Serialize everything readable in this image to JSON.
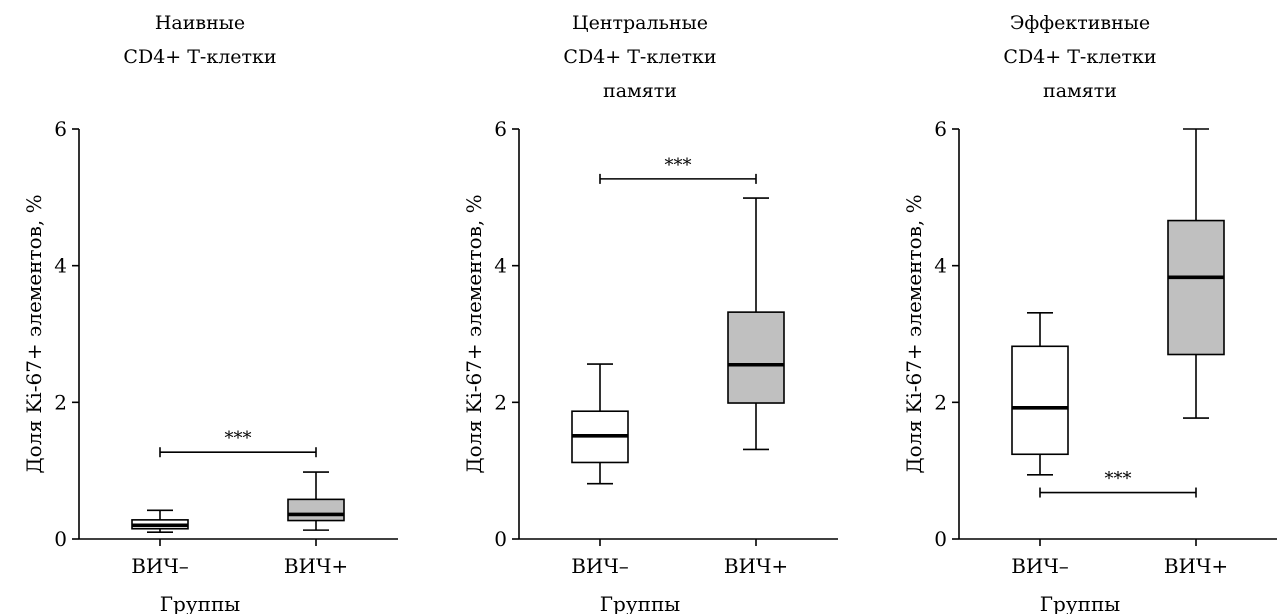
{
  "chart_data": [
    {
      "type": "box",
      "title_lines": [
        "Наивные",
        "CD4+ Т-клетки"
      ],
      "xlabel": "Группы",
      "ylabel": "Доля Ki-67+ элементов, %",
      "ylim": [
        0,
        6
      ],
      "yticks": [
        0,
        2,
        4,
        6
      ],
      "categories": [
        "ВИЧ–",
        "ВИЧ+"
      ],
      "boxes": [
        {
          "group": "ВИЧ–",
          "min": 0.1,
          "q1": 0.15,
          "median": 0.2,
          "q3": 0.28,
          "max": 0.42,
          "fill": "#ffffff"
        },
        {
          "group": "ВИЧ+",
          "min": 0.13,
          "q1": 0.27,
          "median": 0.36,
          "q3": 0.58,
          "max": 0.98,
          "fill": "#c0c0c0"
        }
      ],
      "significance": {
        "label": "***",
        "y": 1.27
      }
    },
    {
      "type": "box",
      "title_lines": [
        "Центральные",
        "CD4+ Т-клетки",
        "памяти"
      ],
      "xlabel": "Группы",
      "ylabel": "Доля Ki-67+ элементов, %",
      "ylim": [
        0,
        6
      ],
      "yticks": [
        0,
        2,
        4,
        6
      ],
      "categories": [
        "ВИЧ–",
        "ВИЧ+"
      ],
      "boxes": [
        {
          "group": "ВИЧ–",
          "min": 0.81,
          "q1": 1.12,
          "median": 1.51,
          "q3": 1.87,
          "max": 2.56,
          "fill": "#ffffff"
        },
        {
          "group": "ВИЧ+",
          "min": 1.31,
          "q1": 1.99,
          "median": 2.55,
          "q3": 3.32,
          "max": 4.99,
          "fill": "#c0c0c0"
        }
      ],
      "significance": {
        "label": "***",
        "y": 5.27
      }
    },
    {
      "type": "box",
      "title_lines": [
        "Эффективные",
        "CD4+ Т-клетки",
        "памяти"
      ],
      "xlabel": "Группы",
      "ylabel": "Доля Ki-67+ элементов, %",
      "ylim": [
        0,
        6
      ],
      "yticks": [
        0,
        2,
        4,
        6
      ],
      "categories": [
        "ВИЧ–",
        "ВИЧ+"
      ],
      "boxes": [
        {
          "group": "ВИЧ–",
          "min": 0.94,
          "q1": 1.24,
          "median": 1.92,
          "q3": 2.82,
          "max": 3.31,
          "fill": "#ffffff"
        },
        {
          "group": "ВИЧ+",
          "min": 1.77,
          "q1": 2.7,
          "median": 3.83,
          "q3": 4.66,
          "max": 6.0,
          "fill": "#c0c0c0"
        }
      ],
      "significance": {
        "label": "***",
        "y": 0.68
      }
    }
  ]
}
